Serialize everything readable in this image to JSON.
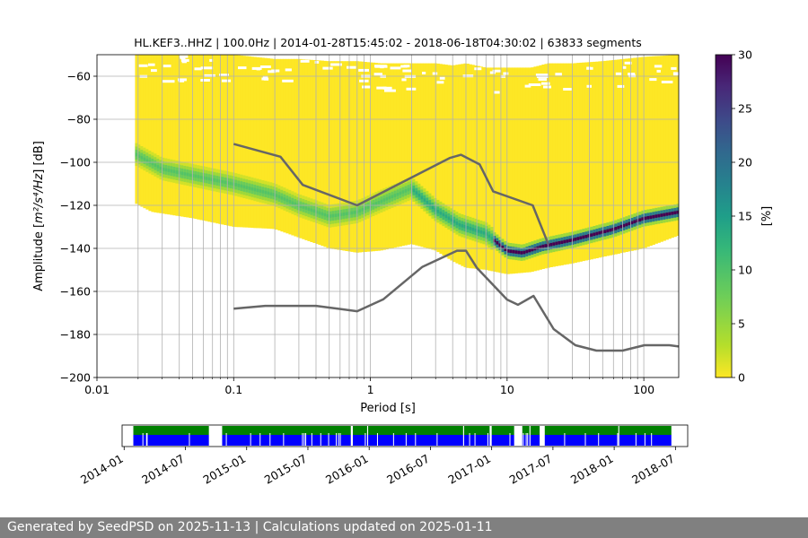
{
  "chart_data": [
    {
      "type": "heatmap",
      "title": "HL.KEF3..HHZ | 100.0Hz | 2014-01-28T15:45:02 - 2018-06-18T04:30:02 | 63833 segments",
      "xlabel": "Period [s]",
      "ylabel_prefix": "Amplitude [",
      "ylabel_math": "m²/s⁴/Hz",
      "ylabel_suffix": "] [dB]",
      "xscale": "log",
      "xlim": [
        0.01,
        180
      ],
      "ylim": [
        -200,
        -50
      ],
      "xticks": [
        0.01,
        0.1,
        1,
        10,
        100
      ],
      "xticklabels": [
        "0.01",
        "0.1",
        "1",
        "10",
        "100"
      ],
      "yticks": [
        -200,
        -180,
        -160,
        -140,
        -120,
        -100,
        -80,
        -60
      ],
      "yticklabels": [
        "−200",
        "−180",
        "−160",
        "−140",
        "−120",
        "−100",
        "−80",
        "−60"
      ],
      "grid": true,
      "colormap": "viridis",
      "colorbar": {
        "label": "[%]",
        "range": [
          0,
          30
        ],
        "ticks": [
          0,
          5,
          10,
          15,
          20,
          25,
          30
        ],
        "ticklabels": [
          "0",
          "5",
          "10",
          "15",
          "20",
          "25",
          "30"
        ]
      },
      "mode_curve": {
        "period": [
          0.019,
          0.03,
          0.05,
          0.1,
          0.2,
          0.3,
          0.5,
          0.8,
          1.2,
          2,
          3,
          4.5,
          7,
          10,
          13,
          18,
          30,
          60,
          100,
          180
        ],
        "db": [
          -96,
          -103,
          -106,
          -110,
          -115,
          -120,
          -125,
          -123,
          -118,
          -112,
          -122,
          -129,
          -133,
          -141,
          -142,
          -139,
          -136,
          -131,
          -126,
          -123
        ]
      },
      "envelope": {
        "period": [
          0.019,
          0.025,
          0.05,
          0.1,
          0.2,
          0.3,
          0.5,
          0.8,
          1.2,
          2,
          3,
          4,
          5,
          7,
          10,
          15,
          20,
          30,
          50,
          100,
          180
        ],
        "upper_db": [
          -50,
          -50,
          -50,
          -50,
          -52,
          -52,
          -53,
          -53,
          -54,
          -54,
          -54,
          -55,
          -54,
          -56,
          -56,
          -56,
          -54,
          -54,
          -53,
          -51,
          -50
        ],
        "lower_db": [
          -119,
          -123,
          -126,
          -130,
          -131,
          -135,
          -140,
          -142,
          -141,
          -138,
          -141,
          -146,
          -149,
          -150,
          -152,
          -151,
          -149,
          -147,
          -144,
          -140,
          -134
        ]
      },
      "noise_models": {
        "high": {
          "period": [
            0.1,
            0.22,
            0.32,
            0.8,
            3.8,
            4.6,
            6.3,
            7.9,
            15.4,
            20
          ],
          "db": [
            -91.5,
            -97.4,
            -110.5,
            -120,
            -98,
            -96.5,
            -101,
            -113.5,
            -120,
            -138
          ]
        },
        "low": {
          "period": [
            0.1,
            0.17,
            0.4,
            0.8,
            1.24,
            2.4,
            4.3,
            5,
            6,
            10,
            12,
            15.6,
            21.9,
            31.6,
            45,
            70,
            101,
            154,
            180
          ],
          "db": [
            -168,
            -166.7,
            -166.7,
            -169.2,
            -163.7,
            -148.6,
            -141.1,
            -141.1,
            -149,
            -163.8,
            -166.2,
            -162.1,
            -177.5,
            -185,
            -187.5,
            -187.5,
            -185,
            -185,
            -185.6
          ]
        }
      }
    },
    {
      "type": "timeline",
      "xticklabels": [
        "2014-01",
        "2014-07",
        "2015-01",
        "2015-07",
        "2016-01",
        "2016-07",
        "2017-01",
        "2017-07",
        "2018-01",
        "2018-07"
      ],
      "xrange_months": [
        11.8,
        67.2
      ],
      "data_span_months": [
        12.9,
        65.6
      ],
      "gaps_months": [
        [
          20.3,
          21.6
        ],
        [
          34.2,
          34.4
        ],
        [
          35.8,
          35.9
        ],
        [
          45.2,
          45.3
        ],
        [
          47.8,
          48.0
        ],
        [
          50.2,
          51.0
        ],
        [
          52.7,
          53.2
        ],
        [
          51.7,
          51.8
        ],
        [
          60.4,
          60.5
        ]
      ],
      "colors": {
        "top": "#008000",
        "bottom": "#0000ff"
      }
    }
  ],
  "footer": {
    "text": "Generated by SeedPSD on 2025-11-13 | Calculations updated on 2025-01-11"
  }
}
